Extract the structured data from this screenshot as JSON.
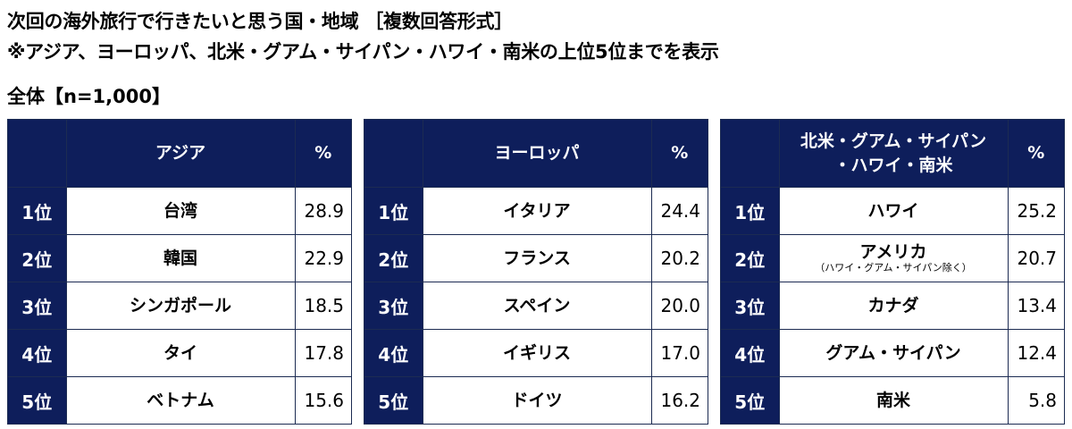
{
  "title_line1": "次回の海外旅行で行きたいと思う国・地域 ［複数回答形式］",
  "title_line2": "※アジア、ヨーロッパ、北米・グアム・サイパン・ハワイ・南米の上位5位までを表示",
  "sample_label": "全体【n=1,000】",
  "chart_data": {
    "type": "table",
    "tables": [
      {
        "region": "アジア",
        "value_header": "%",
        "rows": [
          {
            "rank": "1位",
            "country": "台湾",
            "note": "",
            "value": "28.9"
          },
          {
            "rank": "2位",
            "country": "韓国",
            "note": "",
            "value": "22.9"
          },
          {
            "rank": "3位",
            "country": "シンガポール",
            "note": "",
            "value": "18.5"
          },
          {
            "rank": "4位",
            "country": "タイ",
            "note": "",
            "value": "17.8"
          },
          {
            "rank": "5位",
            "country": "ベトナム",
            "note": "",
            "value": "15.6"
          }
        ]
      },
      {
        "region": "ヨーロッパ",
        "value_header": "%",
        "rows": [
          {
            "rank": "1位",
            "country": "イタリア",
            "note": "",
            "value": "24.4"
          },
          {
            "rank": "2位",
            "country": "フランス",
            "note": "",
            "value": "20.2"
          },
          {
            "rank": "3位",
            "country": "スペイン",
            "note": "",
            "value": "20.0"
          },
          {
            "rank": "4位",
            "country": "イギリス",
            "note": "",
            "value": "17.0"
          },
          {
            "rank": "5位",
            "country": "ドイツ",
            "note": "",
            "value": "16.2"
          }
        ]
      },
      {
        "region": "北米・グアム・サイパン\n・ハワイ・南米",
        "value_header": "%",
        "rows": [
          {
            "rank": "1位",
            "country": "ハワイ",
            "note": "",
            "value": "25.2"
          },
          {
            "rank": "2位",
            "country": "アメリカ",
            "note": "（ハワイ・グアム・サイパン除く）",
            "value": "20.7"
          },
          {
            "rank": "3位",
            "country": "カナダ",
            "note": "",
            "value": "13.4"
          },
          {
            "rank": "4位",
            "country": "グアム・サイパン",
            "note": "",
            "value": "12.4"
          },
          {
            "rank": "5位",
            "country": "南米",
            "note": "",
            "value": "5.8"
          }
        ]
      }
    ]
  }
}
